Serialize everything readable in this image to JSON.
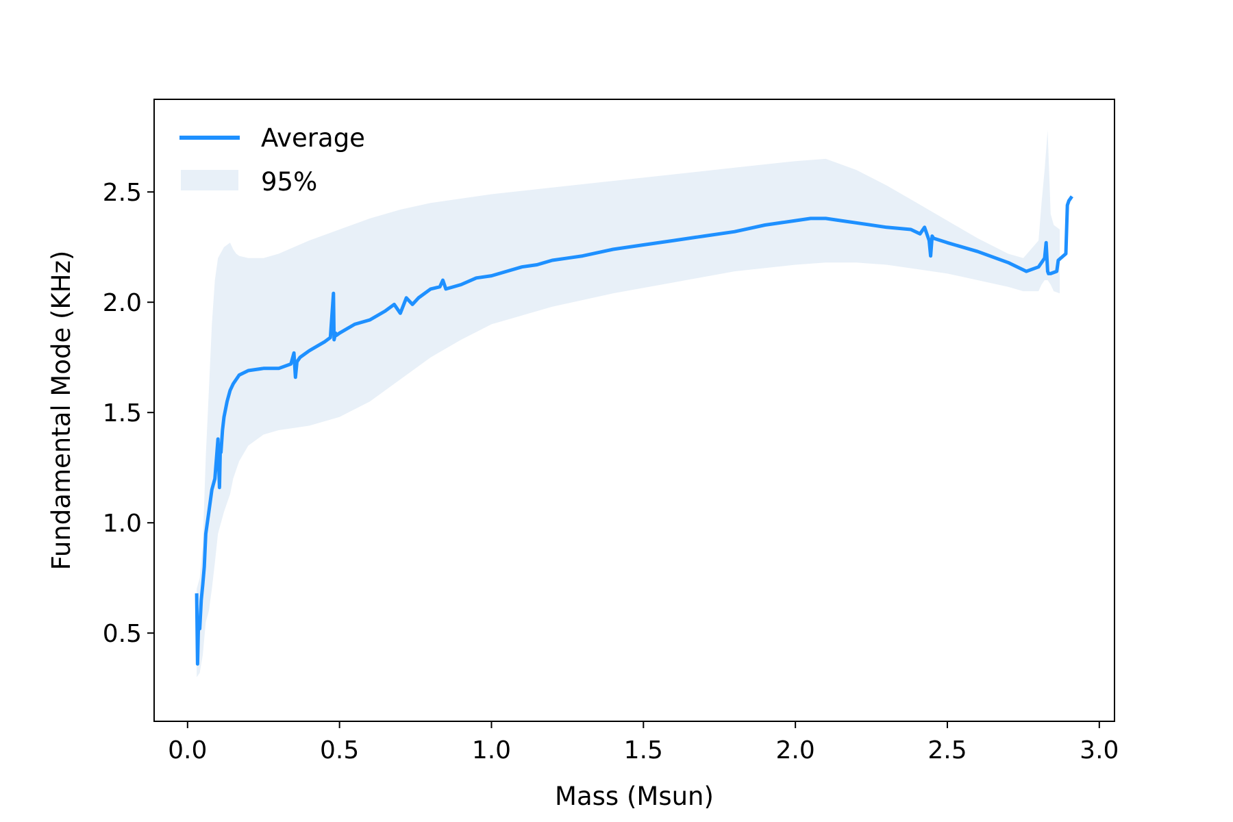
{
  "chart_data": {
    "type": "line",
    "title": "",
    "xlabel": "Mass (Msun)",
    "ylabel": "Fundamental Mode (KHz)",
    "xlim": [
      -0.11,
      3.05
    ],
    "ylim": [
      0.1,
      2.92
    ],
    "xticks": [
      0.0,
      0.5,
      1.0,
      1.5,
      2.0,
      2.5,
      3.0
    ],
    "xtick_labels": [
      "0.0",
      "0.5",
      "1.0",
      "1.5",
      "2.0",
      "2.5",
      "3.0"
    ],
    "yticks": [
      0.5,
      1.0,
      1.5,
      2.0,
      2.5
    ],
    "ytick_labels": [
      "0.5",
      "1.0",
      "1.5",
      "2.0",
      "2.5"
    ],
    "grid": false,
    "legend": {
      "position": "top-left",
      "entries": [
        {
          "label": "Average",
          "kind": "line",
          "color": "#1e90ff"
        },
        {
          "label": "95%",
          "kind": "band",
          "color": "#e8f0f8"
        }
      ]
    },
    "series": [
      {
        "name": "Average",
        "color": "#1e90ff",
        "x": [
          0.03,
          0.033,
          0.036,
          0.04,
          0.045,
          0.05,
          0.055,
          0.06,
          0.07,
          0.08,
          0.09,
          0.1,
          0.105,
          0.108,
          0.11,
          0.115,
          0.12,
          0.13,
          0.14,
          0.15,
          0.17,
          0.2,
          0.25,
          0.3,
          0.34,
          0.35,
          0.355,
          0.36,
          0.37,
          0.4,
          0.45,
          0.47,
          0.48,
          0.482,
          0.487,
          0.49,
          0.5,
          0.55,
          0.6,
          0.65,
          0.68,
          0.7,
          0.72,
          0.74,
          0.76,
          0.8,
          0.83,
          0.84,
          0.85,
          0.9,
          0.95,
          1.0,
          1.05,
          1.1,
          1.15,
          1.2,
          1.25,
          1.3,
          1.4,
          1.5,
          1.6,
          1.7,
          1.8,
          1.9,
          2.0,
          2.05,
          2.1,
          2.15,
          2.2,
          2.3,
          2.38,
          2.41,
          2.425,
          2.44,
          2.445,
          2.45,
          2.455,
          2.5,
          2.6,
          2.7,
          2.76,
          2.8,
          2.82,
          2.825,
          2.83,
          2.833,
          2.84,
          2.86,
          2.865,
          2.89,
          2.895,
          2.9,
          2.91
        ],
        "values": [
          0.68,
          0.36,
          0.55,
          0.52,
          0.65,
          0.72,
          0.8,
          0.95,
          1.05,
          1.15,
          1.2,
          1.38,
          1.16,
          1.35,
          1.32,
          1.42,
          1.48,
          1.55,
          1.6,
          1.63,
          1.67,
          1.69,
          1.7,
          1.7,
          1.72,
          1.77,
          1.66,
          1.73,
          1.75,
          1.78,
          1.82,
          1.84,
          2.04,
          1.83,
          1.86,
          1.85,
          1.86,
          1.9,
          1.92,
          1.96,
          1.99,
          1.95,
          2.02,
          1.99,
          2.02,
          2.06,
          2.07,
          2.1,
          2.06,
          2.08,
          2.11,
          2.12,
          2.14,
          2.16,
          2.17,
          2.19,
          2.2,
          2.21,
          2.24,
          2.26,
          2.28,
          2.3,
          2.32,
          2.35,
          2.37,
          2.38,
          2.38,
          2.37,
          2.36,
          2.34,
          2.33,
          2.31,
          2.34,
          2.28,
          2.21,
          2.3,
          2.29,
          2.27,
          2.23,
          2.18,
          2.14,
          2.16,
          2.2,
          2.27,
          2.14,
          2.13,
          2.13,
          2.14,
          2.19,
          2.22,
          2.44,
          2.46,
          2.48
        ]
      },
      {
        "name": "95%",
        "kind": "band",
        "color": "#e8f0f8",
        "x": [
          0.03,
          0.04,
          0.05,
          0.06,
          0.07,
          0.08,
          0.09,
          0.1,
          0.12,
          0.14,
          0.15,
          0.16,
          0.17,
          0.2,
          0.25,
          0.3,
          0.35,
          0.4,
          0.5,
          0.6,
          0.7,
          0.8,
          0.9,
          1.0,
          1.2,
          1.4,
          1.6,
          1.8,
          2.0,
          2.1,
          2.2,
          2.3,
          2.4,
          2.5,
          2.6,
          2.7,
          2.75,
          2.8,
          2.81,
          2.82,
          2.83,
          2.84,
          2.85,
          2.87
        ],
        "lower": [
          0.3,
          0.32,
          0.4,
          0.55,
          0.6,
          0.7,
          0.82,
          0.95,
          1.05,
          1.13,
          1.2,
          1.24,
          1.28,
          1.35,
          1.4,
          1.42,
          1.43,
          1.44,
          1.48,
          1.55,
          1.65,
          1.75,
          1.83,
          1.9,
          1.98,
          2.04,
          2.09,
          2.14,
          2.17,
          2.18,
          2.18,
          2.17,
          2.15,
          2.13,
          2.1,
          2.07,
          2.05,
          2.05,
          2.08,
          2.1,
          2.1,
          2.08,
          2.05,
          2.04
        ],
        "upper": [
          0.7,
          0.75,
          0.9,
          1.3,
          1.6,
          1.9,
          2.1,
          2.2,
          2.25,
          2.27,
          2.24,
          2.22,
          2.21,
          2.2,
          2.2,
          2.22,
          2.25,
          2.28,
          2.33,
          2.38,
          2.42,
          2.45,
          2.47,
          2.49,
          2.52,
          2.55,
          2.58,
          2.61,
          2.64,
          2.65,
          2.6,
          2.53,
          2.45,
          2.37,
          2.29,
          2.22,
          2.2,
          2.28,
          2.45,
          2.6,
          2.78,
          2.4,
          2.35,
          2.33
        ]
      }
    ]
  }
}
